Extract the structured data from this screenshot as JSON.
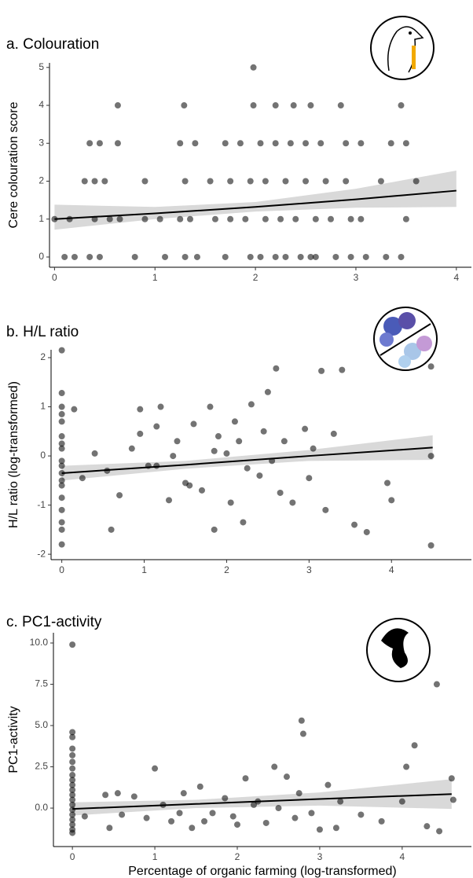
{
  "chart_data": [
    {
      "type": "scatter",
      "title": "a. Colouration",
      "y_label": "Cere colouration score",
      "color": "#000000",
      "point_alpha": 0.55,
      "band_color": "#d9d9d9",
      "xlim": [
        -0.05,
        4.15
      ],
      "ylim": [
        -0.27,
        5.12
      ],
      "xticks": [
        0,
        1,
        2,
        3,
        4
      ],
      "yticks": [
        0,
        1,
        2,
        3,
        4,
        5
      ],
      "x": [
        0.1,
        0.2,
        0.35,
        0.45,
        0.8,
        1.1,
        1.3,
        1.42,
        1.7,
        1.95,
        2.05,
        2.2,
        2.3,
        2.45,
        2.55,
        2.6,
        2.8,
        2.95,
        3.1,
        3.3,
        3.45,
        0.0,
        0.15,
        0.4,
        0.55,
        0.65,
        0.9,
        1.05,
        1.25,
        1.35,
        1.6,
        1.75,
        1.9,
        2.1,
        2.25,
        2.4,
        2.6,
        2.75,
        2.95,
        3.05,
        3.5,
        0.3,
        0.4,
        0.5,
        0.9,
        1.3,
        1.55,
        1.75,
        1.95,
        2.1,
        2.3,
        2.5,
        2.7,
        2.9,
        3.25,
        3.6,
        0.35,
        0.45,
        0.63,
        1.25,
        1.4,
        1.7,
        1.85,
        2.05,
        2.2,
        2.35,
        2.5,
        2.65,
        2.9,
        3.05,
        3.35,
        3.5,
        0.63,
        1.29,
        1.98,
        2.2,
        2.38,
        2.55,
        2.85,
        3.45,
        1.98
      ],
      "y": [
        0,
        0,
        0,
        0,
        0,
        0,
        0,
        0,
        0,
        0,
        0,
        0,
        0,
        0,
        0,
        0,
        0,
        0,
        0,
        0,
        0,
        1,
        1,
        1,
        1,
        1,
        1,
        1,
        1,
        1,
        1,
        1,
        1,
        1,
        1,
        1,
        1,
        1,
        1,
        1,
        1,
        2,
        2,
        2,
        2,
        2,
        2,
        2,
        2,
        2,
        2,
        2,
        2,
        2,
        2,
        2,
        3,
        3,
        3,
        3,
        3,
        3,
        3,
        3,
        3,
        3,
        3,
        3,
        3,
        3,
        3,
        3,
        4,
        4,
        4,
        4,
        4,
        4,
        4,
        4,
        5
      ],
      "fit": {
        "x": [
          0,
          1,
          2,
          3,
          4
        ],
        "y": [
          1.0,
          1.15,
          1.32,
          1.52,
          1.75
        ],
        "lower": [
          0.72,
          1.0,
          1.2,
          1.3,
          1.32
        ],
        "upper": [
          1.38,
          1.32,
          1.45,
          1.8,
          2.28
        ]
      }
    },
    {
      "type": "scatter",
      "title": "b. H/L ratio",
      "y_label": "H/L ratio (log-transformed)",
      "color": "#000000",
      "point_alpha": 0.55,
      "band_color": "#d9d9d9",
      "xlim": [
        -0.13,
        4.97
      ],
      "ylim": [
        -2.11,
        2.16
      ],
      "xticks": [
        0,
        1,
        2,
        3,
        4
      ],
      "yticks": [
        -2,
        -1,
        0,
        1,
        2
      ],
      "x": [
        0,
        0,
        0,
        0,
        0,
        0,
        0,
        0,
        0,
        0,
        0,
        0,
        0,
        0,
        0,
        0,
        0,
        0,
        0.15,
        0.25,
        0.4,
        0.55,
        0.6,
        0.7,
        0.85,
        0.95,
        1.05,
        1.15,
        1.2,
        1.3,
        1.4,
        1.5,
        1.6,
        1.7,
        1.8,
        1.85,
        1.9,
        2.0,
        2.05,
        2.1,
        2.15,
        2.2,
        2.3,
        2.4,
        2.5,
        2.55,
        2.6,
        2.7,
        2.8,
        2.95,
        3.05,
        3.15,
        3.2,
        3.3,
        3.4,
        3.55,
        3.7,
        3.95,
        4.0,
        4.48,
        4.48,
        4.48,
        1.15,
        1.55,
        1.85,
        2.25,
        2.45,
        0.95,
        1.35,
        2.65,
        3.0
      ],
      "y": [
        2.15,
        1.28,
        1.0,
        0.7,
        0.4,
        0.15,
        -0.1,
        -0.35,
        -0.6,
        -0.85,
        -1.1,
        -1.35,
        -1.8,
        0.85,
        -0.5,
        -1.5,
        0.25,
        -0.2,
        0.95,
        -0.45,
        0.05,
        -0.3,
        -1.5,
        -0.8,
        0.15,
        0.95,
        -0.2,
        0.6,
        1.0,
        -0.9,
        0.3,
        -0.55,
        0.65,
        -0.7,
        1.0,
        -1.5,
        0.4,
        0.05,
        -0.95,
        0.7,
        0.3,
        -1.35,
        1.05,
        -0.4,
        1.3,
        -0.1,
        1.78,
        0.3,
        -0.95,
        0.55,
        0.15,
        1.73,
        -1.1,
        0.45,
        1.75,
        -1.4,
        -1.55,
        -0.55,
        -0.9,
        1.82,
        0.0,
        -1.82,
        -0.2,
        -0.6,
        0.1,
        -0.25,
        0.5,
        0.45,
        0.0,
        -0.75,
        -0.45
      ],
      "fit": {
        "x": [
          0,
          1.5,
          3,
          4.5
        ],
        "y": [
          -0.35,
          -0.18,
          0.0,
          0.17
        ],
        "lower": [
          -0.5,
          -0.26,
          -0.1,
          -0.08
        ],
        "upper": [
          -0.2,
          -0.1,
          0.12,
          0.42
        ]
      }
    },
    {
      "type": "scatter",
      "title": "c. PC1-activity",
      "y_label": "PC1-activity",
      "x_label": "Percentage of organic farming (log-transformed)",
      "color": "#000000",
      "point_alpha": 0.55,
      "band_color": "#d9d9d9",
      "xlim": [
        -0.23,
        4.84
      ],
      "ylim": [
        -2.33,
        10.62
      ],
      "xticks": [
        0,
        1,
        2,
        3,
        4
      ],
      "yticks": [
        {
          "value": 0,
          "label": "0.0"
        },
        {
          "value": 2.5,
          "label": "2.5"
        },
        {
          "value": 5,
          "label": "5.0"
        },
        {
          "value": 7.5,
          "label": "7.5"
        },
        {
          "value": 10,
          "label": "10.0"
        }
      ],
      "x": [
        0,
        0,
        0,
        0,
        0,
        0,
        0,
        0,
        0,
        0,
        0,
        0,
        0,
        0,
        0,
        0,
        0,
        0,
        0,
        0,
        0.15,
        0.4,
        0.45,
        0.55,
        0.75,
        0.9,
        1.0,
        1.1,
        1.2,
        1.35,
        1.45,
        1.55,
        1.7,
        1.85,
        1.95,
        2.1,
        2.25,
        2.35,
        2.45,
        2.5,
        2.6,
        2.75,
        2.78,
        2.8,
        2.9,
        3.0,
        3.1,
        3.25,
        3.5,
        3.75,
        4.0,
        4.05,
        4.15,
        4.3,
        4.42,
        4.45,
        4.6,
        4.62,
        1.3,
        2.0,
        2.7,
        3.2,
        0.6,
        1.6,
        2.2
      ],
      "y": [
        9.9,
        4.6,
        4.3,
        3.6,
        3.2,
        2.8,
        2.4,
        2.0,
        1.7,
        1.4,
        1.1,
        0.8,
        0.5,
        0.2,
        -0.1,
        -0.4,
        -0.7,
        -1.0,
        -1.3,
        -1.5,
        -0.5,
        0.8,
        -1.2,
        0.9,
        0.7,
        -0.6,
        2.4,
        0.2,
        -0.8,
        0.9,
        -1.2,
        1.3,
        -0.3,
        0.6,
        -0.5,
        1.8,
        0.4,
        -0.9,
        2.5,
        0.0,
        1.9,
        0.9,
        5.3,
        4.5,
        -0.3,
        -1.3,
        1.4,
        0.4,
        -0.4,
        -0.8,
        0.4,
        2.5,
        3.8,
        -1.1,
        7.5,
        -1.4,
        1.8,
        0.5,
        -0.3,
        -1.0,
        -0.6,
        -1.2,
        -0.4,
        -0.8,
        0.2
      ],
      "fit": {
        "x": [
          0,
          1.5,
          3,
          4.6
        ],
        "y": [
          -0.05,
          0.25,
          0.55,
          0.85
        ],
        "lower": [
          -0.45,
          0.0,
          0.15,
          -0.05
        ],
        "upper": [
          0.35,
          0.5,
          0.95,
          1.75
        ]
      }
    }
  ]
}
